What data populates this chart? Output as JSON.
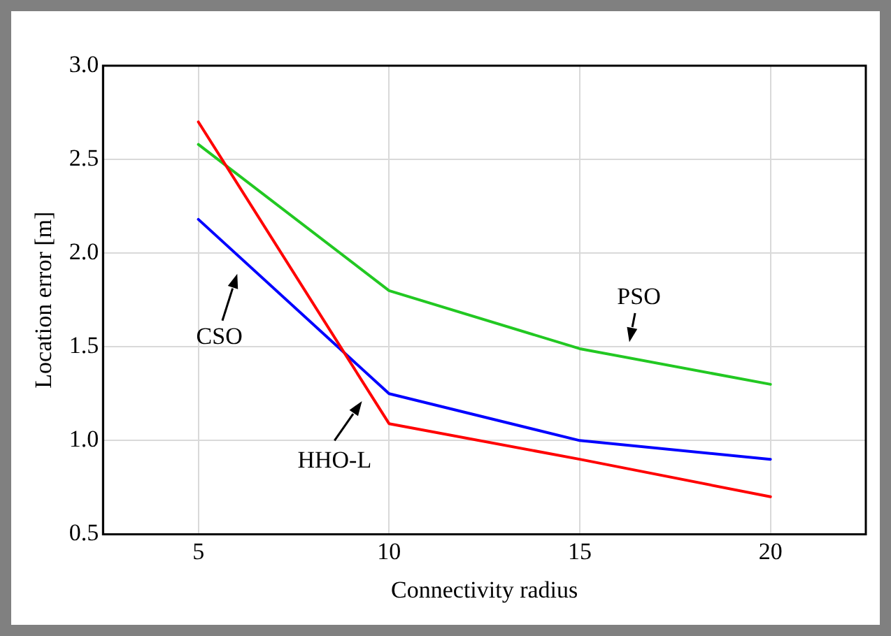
{
  "chart_data": {
    "type": "line",
    "xlabel": "Connectivity radius",
    "ylabel": "Location error [m]",
    "x": [
      5,
      10,
      15,
      20
    ],
    "series": [
      {
        "name": "HHO-L",
        "color": "#ff0000",
        "values": [
          2.7,
          1.09,
          0.9,
          0.7
        ]
      },
      {
        "name": "CSO",
        "color": "#0000ff",
        "values": [
          2.18,
          1.25,
          1.0,
          0.9
        ]
      },
      {
        "name": "PSO",
        "color": "#22c822",
        "values": [
          2.58,
          1.8,
          1.49,
          1.3
        ]
      }
    ],
    "xlim": [
      2.5,
      22.5
    ],
    "xticks": [
      5,
      10,
      15,
      20
    ],
    "ylim": [
      0.5,
      3.0
    ],
    "yticks": [
      {
        "value": 0.5,
        "label": "0.5"
      },
      {
        "value": 1.0,
        "label": "1.0"
      },
      {
        "value": 1.5,
        "label": "1.5"
      },
      {
        "value": 2.0,
        "label": "2.0"
      },
      {
        "value": 2.5,
        "label": "2.5"
      },
      {
        "value": 3.0,
        "label": "3.0"
      }
    ],
    "grid": true,
    "legend": false,
    "marker": "none",
    "line_style": "solid"
  }
}
